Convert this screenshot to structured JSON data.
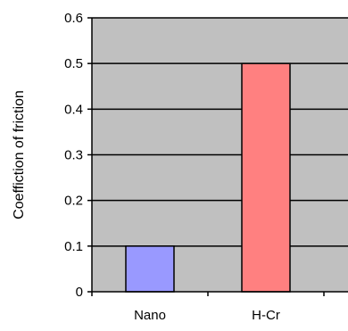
{
  "chart_data": {
    "type": "bar",
    "title": "",
    "xlabel": "",
    "ylabel": "Coeffiction of friction",
    "categories": [
      "Nano",
      "H-Cr"
    ],
    "values": [
      0.1,
      0.5
    ],
    "bar_colors": [
      "#9999ff",
      "#ff8080"
    ],
    "ylim": [
      0,
      0.6
    ],
    "yticks": [
      0,
      0.1,
      0.2,
      0.3,
      0.4,
      0.5,
      0.6
    ],
    "ytick_labels": [
      "0",
      "0.1",
      "0.2",
      "0.3",
      "0.4",
      "0.5",
      "0.6"
    ],
    "grid": true,
    "plot_background": "#c0c0c0",
    "bar_edge_color": "#000000",
    "legend": "none"
  }
}
